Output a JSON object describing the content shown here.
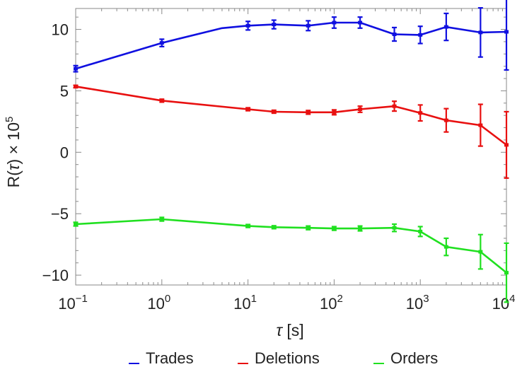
{
  "chart_data": {
    "type": "line",
    "title": "",
    "xlabel_symbol": "τ",
    "xlabel_unit": "[s]",
    "ylabel_prefix": "R(",
    "ylabel_symbol": "τ",
    "ylabel_suffix": ") × 10",
    "ylabel_exponent": "5",
    "x_scale": "log",
    "xlim": [
      0.1,
      10000
    ],
    "ylim": [
      -10.8,
      11.7
    ],
    "x_ticks": [
      {
        "base": "10",
        "exp": "−1"
      },
      {
        "base": "10",
        "exp": "0"
      },
      {
        "base": "10",
        "exp": "1"
      },
      {
        "base": "10",
        "exp": "2"
      },
      {
        "base": "10",
        "exp": "3"
      },
      {
        "base": "10",
        "exp": "4"
      }
    ],
    "y_ticks": [
      {
        "value": -10,
        "label": "−10"
      },
      {
        "value": -5,
        "label": "−5"
      },
      {
        "value": 0,
        "label": "0"
      },
      {
        "value": 5,
        "label": "5"
      },
      {
        "value": 10,
        "label": "10"
      }
    ],
    "legend_position": "bottom",
    "grid": false,
    "series": [
      {
        "name": "Trades",
        "color": "#1010e0",
        "points": [
          {
            "x": 0.1,
            "y": 6.8,
            "err": 0.25
          },
          {
            "x": 1,
            "y": 8.9,
            "err": 0.3
          },
          {
            "x": 5,
            "y": 10.1,
            "err": 0
          },
          {
            "x": 10,
            "y": 10.3,
            "err": 0.35
          },
          {
            "x": 20,
            "y": 10.4,
            "err": 0.35
          },
          {
            "x": 50,
            "y": 10.3,
            "err": 0.4
          },
          {
            "x": 100,
            "y": 10.55,
            "err": 0.45
          },
          {
            "x": 200,
            "y": 10.55,
            "err": 0.45
          },
          {
            "x": 500,
            "y": 9.6,
            "err": 0.55
          },
          {
            "x": 1000,
            "y": 9.55,
            "err": 0.7
          },
          {
            "x": 2000,
            "y": 10.2,
            "err": 1.1
          },
          {
            "x": 5000,
            "y": 9.75,
            "err": 2.0
          },
          {
            "x": 10000,
            "y": 9.8,
            "err": 3.1
          }
        ]
      },
      {
        "name": "Deletions",
        "color": "#e81010",
        "points": [
          {
            "x": 0.1,
            "y": 5.35,
            "err": 0.1
          },
          {
            "x": 1,
            "y": 4.2,
            "err": 0.12
          },
          {
            "x": 10,
            "y": 3.5,
            "err": 0.12
          },
          {
            "x": 20,
            "y": 3.3,
            "err": 0.12
          },
          {
            "x": 50,
            "y": 3.25,
            "err": 0.15
          },
          {
            "x": 100,
            "y": 3.25,
            "err": 0.2
          },
          {
            "x": 200,
            "y": 3.5,
            "err": 0.25
          },
          {
            "x": 500,
            "y": 3.75,
            "err": 0.4
          },
          {
            "x": 1000,
            "y": 3.2,
            "err": 0.65
          },
          {
            "x": 2000,
            "y": 2.6,
            "err": 0.95
          },
          {
            "x": 5000,
            "y": 2.2,
            "err": 1.7
          },
          {
            "x": 10000,
            "y": 0.6,
            "err": 2.7
          }
        ]
      },
      {
        "name": "Orders",
        "color": "#20e020",
        "points": [
          {
            "x": 0.1,
            "y": -5.85,
            "err": 0.15
          },
          {
            "x": 1,
            "y": -5.45,
            "err": 0.15
          },
          {
            "x": 10,
            "y": -6.0,
            "err": 0.12
          },
          {
            "x": 20,
            "y": -6.1,
            "err": 0.12
          },
          {
            "x": 50,
            "y": -6.15,
            "err": 0.15
          },
          {
            "x": 100,
            "y": -6.2,
            "err": 0.15
          },
          {
            "x": 200,
            "y": -6.2,
            "err": 0.2
          },
          {
            "x": 500,
            "y": -6.15,
            "err": 0.3
          },
          {
            "x": 1000,
            "y": -6.45,
            "err": 0.4
          },
          {
            "x": 2000,
            "y": -7.7,
            "err": 0.7
          },
          {
            "x": 5000,
            "y": -8.1,
            "err": 1.4
          },
          {
            "x": 10000,
            "y": -9.8,
            "err": 2.4
          }
        ]
      }
    ]
  }
}
